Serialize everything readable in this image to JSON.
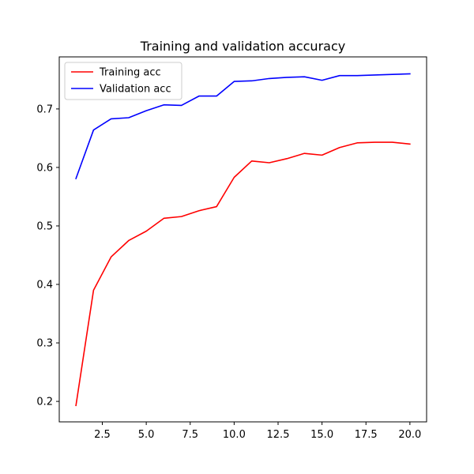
{
  "chart_data": {
    "type": "line",
    "title": "Training and validation accuracy",
    "xlabel": "",
    "ylabel": "",
    "xlim": [
      0.05,
      20.95
    ],
    "ylim": [
      0.165,
      0.789
    ],
    "x_ticks": [
      2.5,
      5.0,
      7.5,
      10.0,
      12.5,
      15.0,
      17.5,
      20.0
    ],
    "x_tick_labels": [
      "2.5",
      "5.0",
      "7.5",
      "10.0",
      "12.5",
      "15.0",
      "17.5",
      "20.0"
    ],
    "y_ticks": [
      0.2,
      0.3,
      0.4,
      0.5,
      0.6,
      0.7
    ],
    "y_tick_labels": [
      "0.2",
      "0.3",
      "0.4",
      "0.5",
      "0.6",
      "0.7"
    ],
    "grid": false,
    "legend_position": "upper-left",
    "x": [
      1,
      2,
      3,
      4,
      5,
      6,
      7,
      8,
      9,
      10,
      11,
      12,
      13,
      14,
      15,
      16,
      17,
      18,
      19,
      20
    ],
    "series": [
      {
        "name": "Training acc",
        "color": "#ff0000",
        "values": [
          0.193,
          0.39,
          0.447,
          0.475,
          0.491,
          0.513,
          0.516,
          0.526,
          0.533,
          0.583,
          0.611,
          0.608,
          0.615,
          0.624,
          0.621,
          0.634,
          0.642,
          0.643,
          0.643,
          0.64
        ]
      },
      {
        "name": "Validation acc",
        "color": "#0000ff",
        "values": [
          0.581,
          0.664,
          0.683,
          0.685,
          0.697,
          0.707,
          0.706,
          0.722,
          0.722,
          0.747,
          0.748,
          0.752,
          0.754,
          0.755,
          0.749,
          0.757,
          0.757,
          0.758,
          0.759,
          0.76
        ]
      }
    ]
  }
}
